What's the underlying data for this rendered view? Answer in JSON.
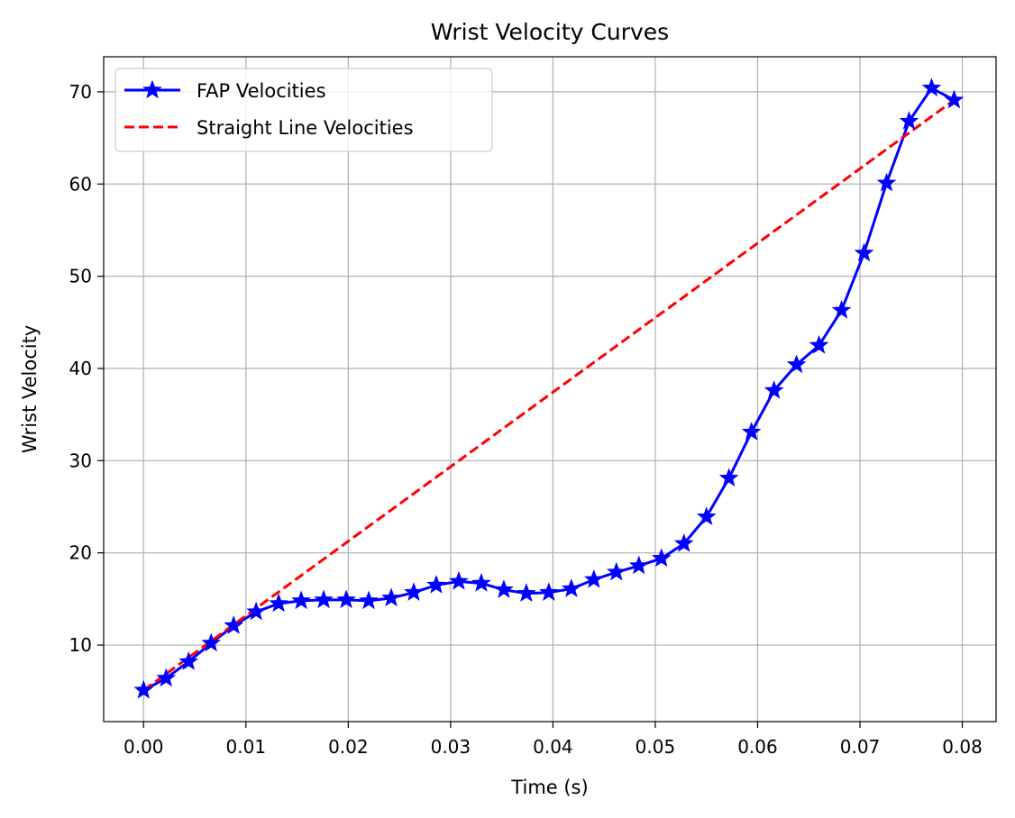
{
  "chart_data": {
    "type": "line",
    "title": "Wrist Velocity Curves",
    "xlabel": "Time (s)",
    "ylabel": "Wrist Velocity",
    "xlim": [
      -0.0039,
      0.0833
    ],
    "ylim": [
      1.7,
      73.8
    ],
    "grid": true,
    "legend_position": "top-left",
    "xticks": [
      0.0,
      0.01,
      0.02,
      0.03,
      0.04,
      0.05,
      0.06,
      0.07,
      0.08
    ],
    "xtick_labels": [
      "0.00",
      "0.01",
      "0.02",
      "0.03",
      "0.04",
      "0.05",
      "0.06",
      "0.07",
      "0.08"
    ],
    "yticks": [
      10,
      20,
      30,
      40,
      50,
      60,
      70
    ],
    "ytick_labels": [
      "10",
      "20",
      "30",
      "40",
      "50",
      "60",
      "70"
    ],
    "series": [
      {
        "name": "FAP Velocities",
        "color": "#0000ff",
        "style": "solid",
        "marker": "star",
        "x": [
          0.0,
          0.0022,
          0.0044,
          0.0066,
          0.0088,
          0.011,
          0.0132,
          0.0154,
          0.0176,
          0.0198,
          0.022,
          0.0242,
          0.0264,
          0.0286,
          0.0308,
          0.033,
          0.0352,
          0.0374,
          0.0396,
          0.0418,
          0.044,
          0.0462,
          0.0484,
          0.0506,
          0.0528,
          0.055,
          0.0572,
          0.0594,
          0.0616,
          0.0638,
          0.066,
          0.0682,
          0.0704,
          0.0726,
          0.0748,
          0.077,
          0.0792
        ],
        "y": [
          5.1,
          6.4,
          8.2,
          10.2,
          12.1,
          13.6,
          14.5,
          14.8,
          14.9,
          14.9,
          14.8,
          15.1,
          15.7,
          16.5,
          16.9,
          16.7,
          16.0,
          15.6,
          15.7,
          16.1,
          17.1,
          17.9,
          18.6,
          19.4,
          21.0,
          23.9,
          28.1,
          33.1,
          37.6,
          40.4,
          42.5,
          46.3,
          52.5,
          60.1,
          66.8,
          70.4,
          69.1
        ]
      },
      {
        "name": "Straight Line Velocities",
        "color": "#ff0000",
        "style": "dashed",
        "marker": "none",
        "x": [
          0.0,
          0.0792
        ],
        "y": [
          5.1,
          69.1
        ]
      }
    ]
  }
}
